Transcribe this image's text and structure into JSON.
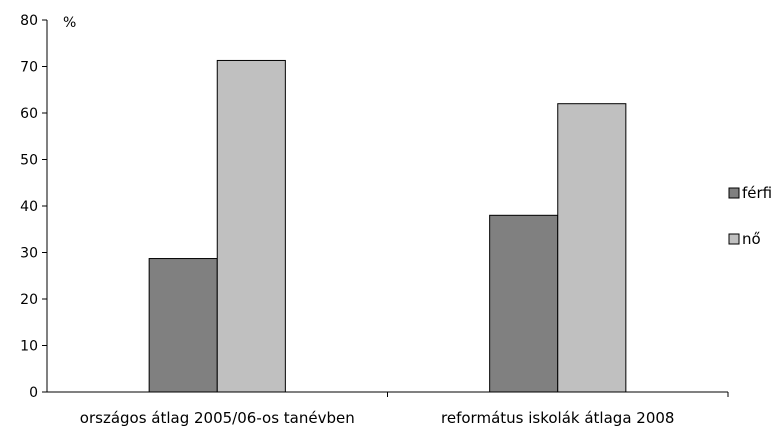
{
  "chart_data": {
    "type": "bar",
    "title": "",
    "xlabel": "",
    "ylabel": "%",
    "ylim": [
      0,
      80
    ],
    "yticks": [
      0,
      10,
      20,
      30,
      40,
      50,
      60,
      70,
      80
    ],
    "grid": false,
    "legend_position": "right",
    "categories": [
      "országos átlag 2005/06-os tanévben",
      "református iskolák átlaga 2008"
    ],
    "series": [
      {
        "name": "férfi",
        "color": "#808080",
        "values": [
          28.7,
          38.0
        ]
      },
      {
        "name": "nő",
        "color": "#c0c0c0",
        "values": [
          71.3,
          62.0
        ]
      }
    ]
  }
}
